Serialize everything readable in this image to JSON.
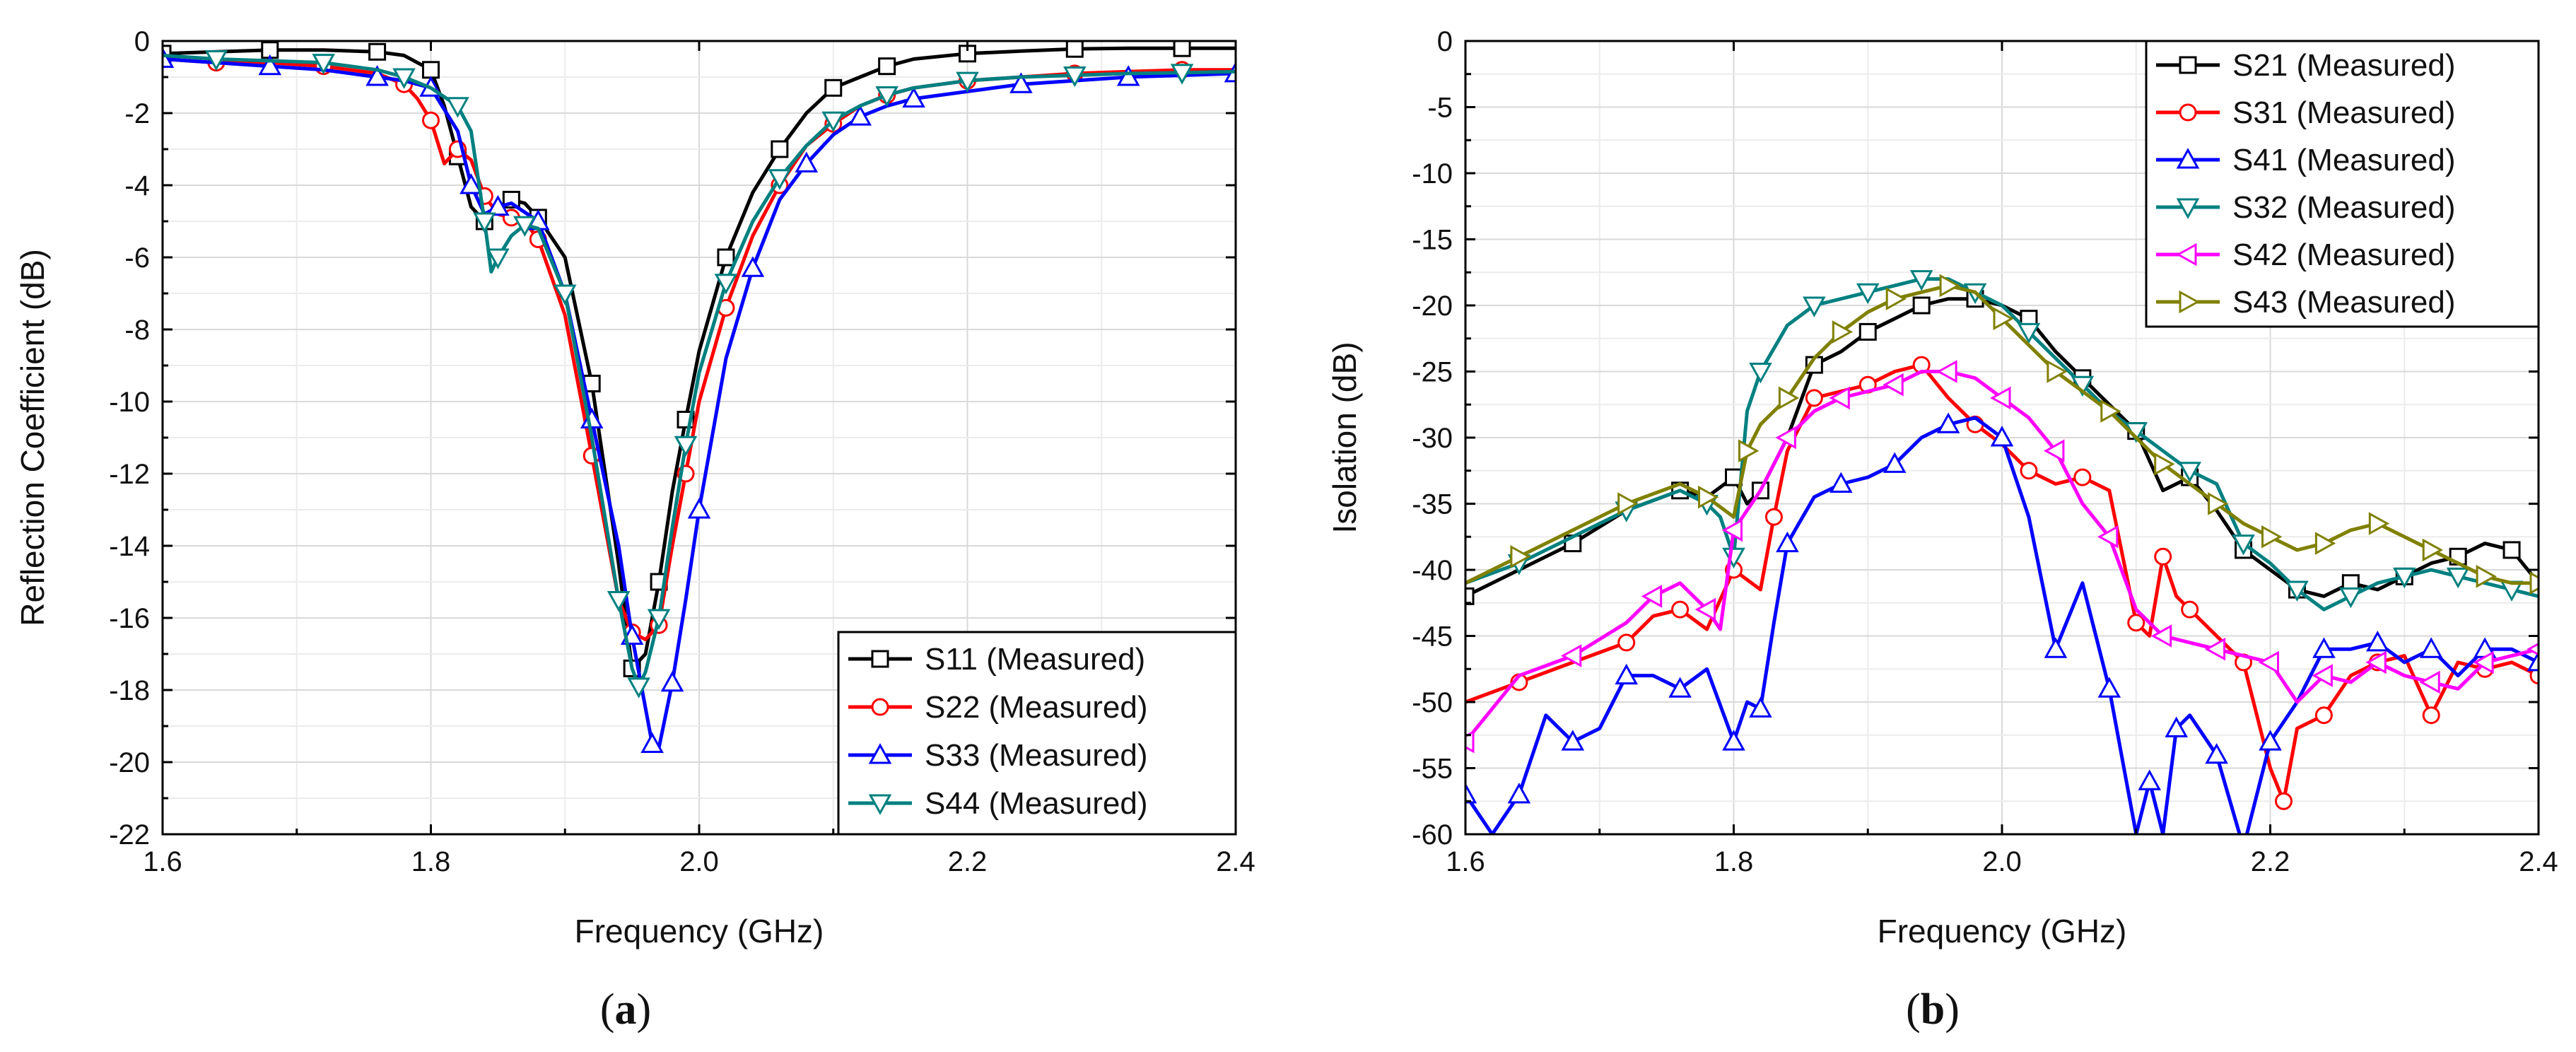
{
  "chart_data": [
    {
      "type": "line",
      "panel": "a",
      "caption": {
        "open": "(",
        "letter": "a",
        "close": ")"
      },
      "xlabel": "Frequency (GHz)",
      "ylabel": "Reflection Coefficient (dB)",
      "xlim": [
        1.6,
        2.4
      ],
      "ylim": [
        -22,
        0
      ],
      "xticks": [
        1.6,
        1.8,
        2.0,
        2.2,
        2.4
      ],
      "xtick_labels": [
        "1.6",
        "1.8",
        "2.0",
        "2.2",
        "2.4"
      ],
      "yticks": [
        0,
        -2,
        -4,
        -6,
        -8,
        -10,
        -12,
        -14,
        -16,
        -18,
        -20,
        -22
      ],
      "ytick_labels": [
        "0",
        "-2",
        "-4",
        "-6",
        "-8",
        "-10",
        "-12",
        "-14",
        "-16",
        "-18",
        "-20",
        "-22"
      ],
      "grid": true,
      "legend_position": "bottom-right",
      "series": [
        {
          "name": "S11 (Measured)",
          "color": "#000000",
          "marker": "square",
          "x": [
            1.6,
            1.64,
            1.68,
            1.72,
            1.76,
            1.78,
            1.8,
            1.81,
            1.82,
            1.83,
            1.84,
            1.85,
            1.86,
            1.87,
            1.88,
            1.9,
            1.92,
            1.94,
            1.95,
            1.96,
            1.97,
            1.98,
            1.99,
            2.0,
            2.02,
            2.04,
            2.06,
            2.08,
            2.1,
            2.12,
            2.14,
            2.16,
            2.2,
            2.24,
            2.28,
            2.32,
            2.36,
            2.4
          ],
          "y": [
            -0.35,
            -0.3,
            -0.25,
            -0.25,
            -0.3,
            -0.4,
            -0.8,
            -1.8,
            -3.2,
            -4.6,
            -5.0,
            -4.7,
            -4.4,
            -4.5,
            -4.9,
            -6.0,
            -9.5,
            -14.5,
            -17.4,
            -17.0,
            -15.0,
            -12.5,
            -10.5,
            -8.6,
            -6.0,
            -4.2,
            -3.0,
            -2.0,
            -1.3,
            -1.0,
            -0.7,
            -0.5,
            -0.35,
            -0.28,
            -0.22,
            -0.2,
            -0.2,
            -0.2
          ]
        },
        {
          "name": "S22 (Measured)",
          "color": "#ff0000",
          "marker": "circle",
          "x": [
            1.6,
            1.64,
            1.68,
            1.72,
            1.76,
            1.78,
            1.79,
            1.8,
            1.81,
            1.82,
            1.83,
            1.84,
            1.85,
            1.86,
            1.87,
            1.88,
            1.9,
            1.92,
            1.94,
            1.95,
            1.96,
            1.97,
            1.98,
            1.99,
            2.0,
            2.02,
            2.04,
            2.06,
            2.08,
            2.1,
            2.12,
            2.14,
            2.16,
            2.2,
            2.24,
            2.28,
            2.32,
            2.36,
            2.4
          ],
          "y": [
            -0.5,
            -0.6,
            -0.6,
            -0.7,
            -0.9,
            -1.2,
            -1.6,
            -2.2,
            -3.4,
            -3.0,
            -3.3,
            -4.3,
            -4.8,
            -4.9,
            -5.0,
            -5.5,
            -7.6,
            -11.5,
            -15.5,
            -16.4,
            -16.6,
            -16.2,
            -14.0,
            -12.0,
            -10.0,
            -7.4,
            -5.4,
            -4.0,
            -2.9,
            -2.3,
            -1.8,
            -1.5,
            -1.3,
            -1.1,
            -1.0,
            -0.9,
            -0.85,
            -0.8,
            -0.8
          ]
        },
        {
          "name": "S33 (Measured)",
          "color": "#0000ff",
          "marker": "triangle-up",
          "x": [
            1.6,
            1.64,
            1.68,
            1.72,
            1.76,
            1.78,
            1.8,
            1.82,
            1.83,
            1.84,
            1.85,
            1.86,
            1.88,
            1.9,
            1.92,
            1.94,
            1.95,
            1.96,
            1.965,
            1.97,
            1.98,
            1.99,
            2.0,
            2.02,
            2.04,
            2.06,
            2.08,
            2.1,
            2.12,
            2.14,
            2.16,
            2.2,
            2.24,
            2.28,
            2.32,
            2.36,
            2.4
          ],
          "y": [
            -0.5,
            -0.6,
            -0.7,
            -0.8,
            -1.0,
            -1.1,
            -1.3,
            -2.5,
            -4.0,
            -4.8,
            -4.6,
            -4.5,
            -5.0,
            -7.0,
            -10.5,
            -14.0,
            -16.5,
            -18.5,
            -19.5,
            -19.6,
            -17.8,
            -15.5,
            -13.0,
            -8.8,
            -6.3,
            -4.4,
            -3.4,
            -2.6,
            -2.1,
            -1.8,
            -1.6,
            -1.4,
            -1.2,
            -1.1,
            -1.0,
            -0.95,
            -0.9
          ]
        },
        {
          "name": "S44 (Measured)",
          "color": "#008080",
          "marker": "triangle-down",
          "x": [
            1.6,
            1.64,
            1.68,
            1.72,
            1.76,
            1.78,
            1.8,
            1.82,
            1.83,
            1.84,
            1.845,
            1.85,
            1.86,
            1.87,
            1.88,
            1.9,
            1.92,
            1.94,
            1.95,
            1.955,
            1.96,
            1.97,
            1.98,
            1.99,
            2.0,
            2.02,
            2.04,
            2.06,
            2.08,
            2.1,
            2.12,
            2.14,
            2.16,
            2.2,
            2.24,
            2.28,
            2.32,
            2.36,
            2.4
          ],
          "y": [
            -0.4,
            -0.5,
            -0.55,
            -0.6,
            -0.8,
            -1.0,
            -1.3,
            -1.8,
            -2.5,
            -5.0,
            -6.4,
            -6.0,
            -5.4,
            -5.1,
            -5.2,
            -7.0,
            -11.0,
            -15.5,
            -17.4,
            -17.9,
            -17.5,
            -16.0,
            -13.5,
            -11.2,
            -9.2,
            -6.7,
            -5.0,
            -3.8,
            -2.9,
            -2.2,
            -1.8,
            -1.5,
            -1.3,
            -1.1,
            -1.0,
            -0.95,
            -0.9,
            -0.88,
            -0.85
          ]
        }
      ]
    },
    {
      "type": "line",
      "panel": "b",
      "caption": {
        "open": "(",
        "letter": "b",
        "close": ")"
      },
      "xlabel": "Frequency (GHz)",
      "ylabel": "Isolation (dB)",
      "xlim": [
        1.6,
        2.4
      ],
      "ylim": [
        -60,
        0
      ],
      "xticks": [
        1.6,
        1.8,
        2.0,
        2.2,
        2.4
      ],
      "xtick_labels": [
        "1.6",
        "1.8",
        "2.0",
        "2.2",
        "2.4"
      ],
      "yticks": [
        0,
        -5,
        -10,
        -15,
        -20,
        -25,
        -30,
        -35,
        -40,
        -45,
        -50,
        -55,
        -60
      ],
      "ytick_labels": [
        "0",
        "-5",
        "-10",
        "-15",
        "-20",
        "-25",
        "-30",
        "-35",
        "-40",
        "-45",
        "-50",
        "-55",
        "-60"
      ],
      "grid": true,
      "legend_position": "top-right",
      "series": [
        {
          "name": "S21 (Measured)",
          "color": "#000000",
          "marker": "square",
          "x": [
            1.6,
            1.64,
            1.68,
            1.72,
            1.76,
            1.78,
            1.8,
            1.81,
            1.82,
            1.84,
            1.86,
            1.88,
            1.9,
            1.92,
            1.94,
            1.96,
            1.98,
            2.0,
            2.02,
            2.04,
            2.06,
            2.08,
            2.1,
            2.12,
            2.14,
            2.16,
            2.18,
            2.2,
            2.22,
            2.24,
            2.26,
            2.28,
            2.3,
            2.32,
            2.34,
            2.36,
            2.38,
            2.4
          ],
          "y": [
            -42,
            -40,
            -38,
            -35.5,
            -34,
            -34.5,
            -33,
            -35,
            -34,
            -30,
            -24.5,
            -23.5,
            -22,
            -21,
            -20,
            -19.5,
            -19.5,
            -20,
            -21,
            -23.5,
            -25.5,
            -27.5,
            -29.5,
            -34,
            -33,
            -35.5,
            -38.5,
            -40,
            -41.5,
            -42,
            -41,
            -41.5,
            -40.5,
            -39.5,
            -39,
            -38,
            -38.5,
            -41
          ]
        },
        {
          "name": "S31 (Measured)",
          "color": "#ff0000",
          "marker": "circle",
          "x": [
            1.6,
            1.64,
            1.68,
            1.72,
            1.74,
            1.76,
            1.78,
            1.8,
            1.82,
            1.83,
            1.84,
            1.86,
            1.88,
            1.9,
            1.92,
            1.94,
            1.96,
            1.98,
            2.0,
            2.02,
            2.04,
            2.06,
            2.08,
            2.1,
            2.11,
            2.12,
            2.13,
            2.14,
            2.16,
            2.18,
            2.2,
            2.21,
            2.22,
            2.24,
            2.26,
            2.28,
            2.3,
            2.32,
            2.34,
            2.36,
            2.38,
            2.4
          ],
          "y": [
            -50,
            -48.5,
            -47,
            -45.5,
            -43.5,
            -43,
            -44.5,
            -40,
            -41.5,
            -36,
            -31,
            -27,
            -26.5,
            -26,
            -25,
            -24.5,
            -27,
            -29,
            -30.5,
            -32.5,
            -33.5,
            -33,
            -34,
            -44,
            -45,
            -39,
            -42,
            -43,
            -45,
            -47,
            -55,
            -57.5,
            -52,
            -51,
            -48,
            -47,
            -46.5,
            -51,
            -47,
            -47.5,
            -47,
            -48
          ]
        },
        {
          "name": "S41 (Measured)",
          "color": "#0000ff",
          "marker": "triangle-up",
          "x": [
            1.6,
            1.62,
            1.64,
            1.66,
            1.68,
            1.7,
            1.72,
            1.74,
            1.76,
            1.78,
            1.8,
            1.81,
            1.82,
            1.83,
            1.84,
            1.86,
            1.88,
            1.9,
            1.92,
            1.94,
            1.96,
            1.98,
            2.0,
            2.02,
            2.04,
            2.06,
            2.08,
            2.1,
            2.11,
            2.12,
            2.13,
            2.14,
            2.16,
            2.18,
            2.2,
            2.22,
            2.24,
            2.26,
            2.28,
            2.3,
            2.32,
            2.34,
            2.36,
            2.38,
            2.4
          ],
          "y": [
            -57,
            -60,
            -57,
            -51,
            -53,
            -52,
            -48,
            -48,
            -49,
            -47.5,
            -53,
            -50,
            -50.5,
            -44,
            -38,
            -34.5,
            -33.5,
            -33,
            -32,
            -30,
            -29,
            -28.5,
            -30,
            -36,
            -46,
            -41,
            -49,
            -60,
            -56,
            -60,
            -52,
            -51,
            -54,
            -61,
            -53,
            -50,
            -46,
            -46,
            -45.5,
            -47,
            -46,
            -48,
            -46,
            -46,
            -47
          ]
        },
        {
          "name": "S32 (Measured)",
          "color": "#008080",
          "marker": "triangle-down",
          "x": [
            1.6,
            1.64,
            1.68,
            1.72,
            1.76,
            1.78,
            1.79,
            1.8,
            1.81,
            1.82,
            1.84,
            1.86,
            1.88,
            1.9,
            1.92,
            1.94,
            1.96,
            1.98,
            2.0,
            2.02,
            2.04,
            2.06,
            2.08,
            2.1,
            2.12,
            2.14,
            2.16,
            2.18,
            2.2,
            2.22,
            2.24,
            2.26,
            2.28,
            2.3,
            2.32,
            2.34,
            2.36,
            2.38,
            2.4
          ],
          "y": [
            -41,
            -39.5,
            -37.5,
            -35.5,
            -34,
            -35,
            -36,
            -39,
            -28,
            -25,
            -21.5,
            -20,
            -19.5,
            -19,
            -18.5,
            -18,
            -18,
            -19,
            -20,
            -22,
            -24,
            -26,
            -28,
            -29.5,
            -31,
            -32.5,
            -33.5,
            -38,
            -39.5,
            -41.5,
            -43,
            -42,
            -41,
            -40.5,
            -40,
            -40.5,
            -41,
            -41.5,
            -42
          ]
        },
        {
          "name": "S42 (Measured)",
          "color": "#ff00ff",
          "marker": "triangle-left",
          "x": [
            1.6,
            1.64,
            1.68,
            1.72,
            1.74,
            1.76,
            1.78,
            1.79,
            1.8,
            1.82,
            1.84,
            1.86,
            1.88,
            1.9,
            1.92,
            1.94,
            1.96,
            1.98,
            2.0,
            2.02,
            2.04,
            2.06,
            2.08,
            2.1,
            2.12,
            2.14,
            2.16,
            2.18,
            2.2,
            2.22,
            2.24,
            2.26,
            2.28,
            2.3,
            2.32,
            2.34,
            2.36,
            2.38,
            2.4
          ],
          "y": [
            -53,
            -48,
            -46.5,
            -44,
            -42,
            -41,
            -43,
            -44.5,
            -37,
            -34,
            -30,
            -28,
            -27,
            -26.5,
            -26,
            -25,
            -25,
            -25.5,
            -27,
            -28.5,
            -31,
            -35,
            -37.5,
            -43,
            -45,
            -45.5,
            -46,
            -46.5,
            -47,
            -50,
            -48,
            -48.5,
            -47,
            -48,
            -48.5,
            -49,
            -47,
            -46.5,
            -46
          ]
        },
        {
          "name": "S43 (Measured)",
          "color": "#808000",
          "marker": "triangle-right",
          "x": [
            1.6,
            1.64,
            1.68,
            1.72,
            1.76,
            1.78,
            1.8,
            1.81,
            1.82,
            1.84,
            1.86,
            1.88,
            1.9,
            1.92,
            1.94,
            1.96,
            1.98,
            2.0,
            2.02,
            2.04,
            2.06,
            2.08,
            2.1,
            2.12,
            2.14,
            2.16,
            2.18,
            2.2,
            2.22,
            2.24,
            2.26,
            2.28,
            2.3,
            2.32,
            2.34,
            2.36,
            2.38,
            2.4
          ],
          "y": [
            -41,
            -39,
            -37,
            -35,
            -33.5,
            -34.5,
            -36,
            -31,
            -29,
            -27,
            -24,
            -22,
            -20.5,
            -19.5,
            -19,
            -18.5,
            -19,
            -21,
            -23,
            -25,
            -26.5,
            -28,
            -30,
            -32,
            -33.5,
            -35,
            -36.5,
            -37.5,
            -38.5,
            -38,
            -37,
            -36.5,
            -37.5,
            -38.5,
            -39.5,
            -40.5,
            -41,
            -41
          ]
        }
      ]
    }
  ]
}
